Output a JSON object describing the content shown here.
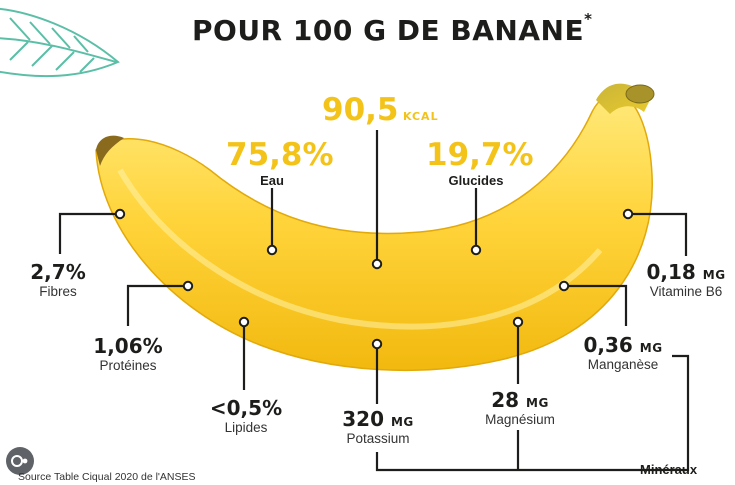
{
  "header": {
    "title": "POUR 100 G DE BANANE",
    "asterisk": "*"
  },
  "energy": {
    "value": "90,5",
    "unit": "KCAL"
  },
  "macros": [
    {
      "value": "75,8%",
      "label": "Eau"
    },
    {
      "value": "19,7%",
      "label": "Glucides"
    }
  ],
  "nutrients": {
    "fibres": {
      "value": "2,7%",
      "unit": "",
      "label": "Fibres"
    },
    "proteines": {
      "value": "1,06%",
      "unit": "",
      "label": "Protéines"
    },
    "lipides": {
      "value": "<0,5%",
      "unit": "",
      "label": "Lipides"
    },
    "potassium": {
      "value": "320",
      "unit": "MG",
      "label": "Potassium"
    },
    "magnesium": {
      "value": "28",
      "unit": "MG",
      "label": "Magnésium"
    },
    "manganese": {
      "value": "0,36",
      "unit": "MG",
      "label": "Manganèse"
    },
    "vitamine_b6": {
      "value": "0,18",
      "unit": "MG",
      "label": "Vitamine B6"
    }
  },
  "group_label": "Minéraux",
  "source": "Source Table Ciqual 2020 de l'ANSES",
  "colors": {
    "accent_yellow": "#f3c319",
    "text_dark": "#1d1d1b",
    "leaf_teal": "#5bbfa7"
  },
  "icons": [
    "leaf-decoration",
    "banana-illustration",
    "lens-icon"
  ]
}
